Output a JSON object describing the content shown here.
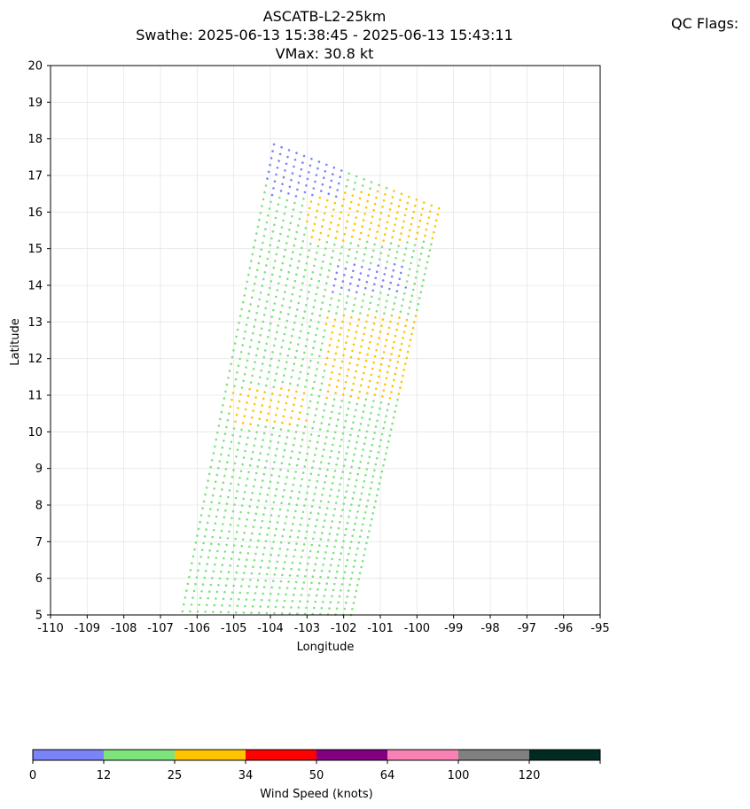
{
  "figure": {
    "title_lines": [
      "ASCATB-L2-25km",
      "Swathe: 2025-06-13 15:38:45 - 2025-06-13 15:43:11",
      "VMax: 30.8 kt"
    ],
    "qc_label": "QC Flags:"
  },
  "chart_data": {
    "type": "scatter",
    "title": "ASCATB-L2-25km",
    "xlabel": "Longitude",
    "ylabel": "Latitude",
    "xlim": [
      -110,
      -95
    ],
    "ylim": [
      5,
      20
    ],
    "xticks": [
      -110,
      -109,
      -108,
      -107,
      -106,
      -105,
      -104,
      -103,
      -102,
      -101,
      -100,
      -99,
      -98,
      -97,
      -96,
      -95
    ],
    "yticks": [
      5,
      6,
      7,
      8,
      9,
      10,
      11,
      12,
      13,
      14,
      15,
      16,
      17,
      18,
      19,
      20
    ],
    "grid": true,
    "swath": {
      "description": "ASCAT wind vector cells on a tilted swath grid",
      "corners": {
        "bottom_left": [
          -106.4,
          5.1
        ],
        "bottom_right": [
          -101.8,
          5.0
        ],
        "top_left": [
          -103.9,
          17.85
        ],
        "top_right": [
          -99.4,
          16.1
        ]
      },
      "across_track_cells": 22,
      "along_track_rows": 68
    },
    "series": [
      {
        "category": "0-12",
        "color": "#7b84f7",
        "regions": [
          {
            "lon_range": [
              -104.1,
              -102.0
            ],
            "lat_range": [
              16.4,
              17.9
            ]
          },
          {
            "lon_range": [
              -102.3,
              -100.3
            ],
            "lat_range": [
              13.8,
              14.6
            ]
          }
        ]
      },
      {
        "category": "12-25",
        "color": "#7de37d",
        "regions": "remainder of swath"
      },
      {
        "category": "25-34",
        "color": "#ffc400",
        "regions": [
          {
            "lon_range": [
              -103.0,
              -99.4
            ],
            "lat_range": [
              15.2,
              16.6
            ]
          },
          {
            "lon_range": [
              -102.5,
              -100.0
            ],
            "lat_range": [
              10.9,
              13.2
            ]
          },
          {
            "lon_range": [
              -105.1,
              -103.0
            ],
            "lat_range": [
              10.2,
              11.2
            ]
          }
        ]
      }
    ],
    "vmax_kt": 30.8,
    "colorbar": {
      "label": "Wind Speed (knots)",
      "tick_labels": [
        "0",
        "12",
        "25",
        "34",
        "50",
        "64",
        "100",
        "120"
      ],
      "colors": [
        "#7b84f7",
        "#7de37d",
        "#ffc400",
        "#ff0000",
        "#800080",
        "#f882b4",
        "#808080",
        "#002a22"
      ]
    }
  }
}
